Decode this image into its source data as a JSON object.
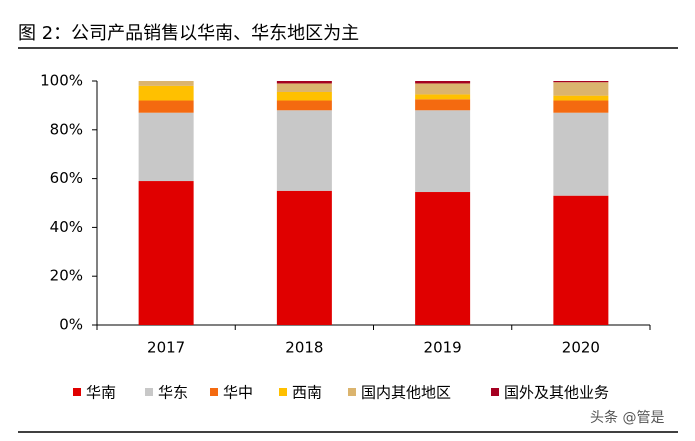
{
  "chart_data": {
    "type": "stacked_bar",
    "title": "图 2：公司产品销售以华南、华东地区为主",
    "categories": [
      "2017",
      "2018",
      "2019",
      "2020"
    ],
    "series": [
      {
        "name": "华南",
        "color": "#e00000",
        "values": [
          59,
          55,
          54.5,
          53
        ]
      },
      {
        "name": "华东",
        "color": "#c8c8c8",
        "values": [
          28,
          33,
          33.5,
          34
        ]
      },
      {
        "name": "华中",
        "color": "#f46a10",
        "values": [
          5,
          4,
          4.5,
          5
        ]
      },
      {
        "name": "西南",
        "color": "#ffc000",
        "values": [
          6,
          3.5,
          2,
          2
        ]
      },
      {
        "name": "国内其他地区",
        "color": "#dbb46e",
        "values": [
          2,
          3.5,
          4.5,
          5.5
        ]
      },
      {
        "name": "国外及其他业务",
        "color": "#a50021",
        "values": [
          0,
          1,
          1,
          0.5
        ]
      }
    ],
    "ylim": [
      0,
      100
    ],
    "yticks": [
      {
        "value": 0,
        "label": "0%"
      },
      {
        "value": 20,
        "label": "20%"
      },
      {
        "value": 40,
        "label": "40%"
      },
      {
        "value": 60,
        "label": "60%"
      },
      {
        "value": 80,
        "label": "80%"
      },
      {
        "value": 100,
        "label": "100%"
      }
    ],
    "watermark": "头条 @管是"
  }
}
